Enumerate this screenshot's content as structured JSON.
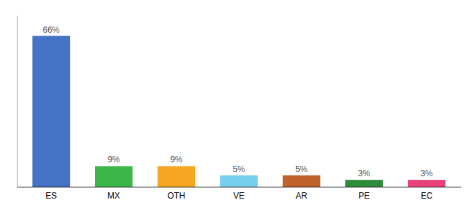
{
  "chart_data": {
    "type": "bar",
    "categories": [
      "ES",
      "MX",
      "OTH",
      "VE",
      "AR",
      "PE",
      "EC"
    ],
    "values": [
      66,
      9,
      9,
      5,
      5,
      3,
      3
    ],
    "value_labels": [
      "66%",
      "9%",
      "9%",
      "5%",
      "5%",
      "3%",
      "3%"
    ],
    "colors": [
      "#4472C4",
      "#3CB54A",
      "#F5A623",
      "#76CFED",
      "#C0622B",
      "#2E8B3B",
      "#E8417A"
    ],
    "ylim": [
      0,
      75
    ],
    "data_labels": true,
    "tick_labels": "x",
    "grid": false
  }
}
